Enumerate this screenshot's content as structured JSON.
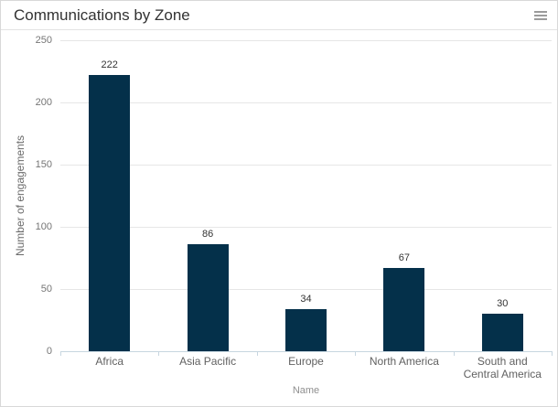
{
  "header": {
    "title": "Communications by Zone"
  },
  "menu": {
    "icon": "hamburger-menu-icon"
  },
  "chart_data": {
    "type": "bar",
    "title": "Communications by Zone",
    "categories": [
      "Africa",
      "Asia Pacific",
      "Europe",
      "North America",
      "South and Central America"
    ],
    "values": [
      222,
      86,
      34,
      67,
      30
    ],
    "xlabel": "Name",
    "ylabel": "Number of engagements",
    "ylim": [
      0,
      250
    ],
    "yticks": [
      0,
      50,
      100,
      150,
      200,
      250
    ],
    "grid": true,
    "legend": "none",
    "data_labels": true,
    "bar_color": "#04304a"
  }
}
